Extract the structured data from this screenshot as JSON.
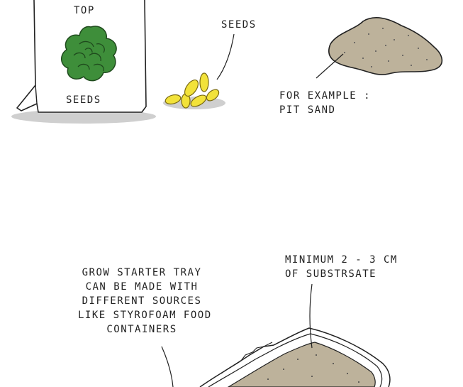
{
  "seed_bag": {
    "top_label": "TOP",
    "bottom_label": "SEEDS"
  },
  "seeds": {
    "label": "SEEDS"
  },
  "substrate": {
    "line1": "FOR EXAMPLE :",
    "line2": "PIT SAND"
  },
  "tray": {
    "note_lines": [
      "GROW STARTER TRAY",
      "CAN BE MADE WITH",
      "DIFFERENT SOURCES",
      "LIKE STYROFOAM FOOD",
      "CONTAINERS"
    ],
    "depth_line1": "MINIMUM 2 - 3 CM",
    "depth_line2": "OF SUBSTRSATE"
  },
  "colors": {
    "leaf_green": "#3e8e3a",
    "seed_yellow": "#f2e23a",
    "sand": "#bdb29b",
    "shadow": "#cfcfcf"
  }
}
